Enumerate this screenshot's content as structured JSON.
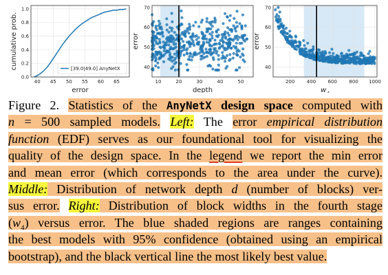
{
  "chart_data": [
    {
      "type": "line",
      "xlabel": "error",
      "ylabel": "cumulative prob.",
      "xlim": [
        38,
        69
      ],
      "ylim": [
        0,
        1.05
      ],
      "x_ticks": [
        "40",
        "45",
        "50",
        "55",
        "60",
        "65"
      ],
      "y_ticks": [
        "0.0",
        "0.2",
        "0.4",
        "0.6",
        "0.8",
        "1.0"
      ],
      "legend_position": "lower-right",
      "series": [
        {
          "name": "[39.0|49.0] AnyNetX",
          "color": "#1f77b4",
          "x": [
            39,
            40,
            41,
            42,
            43,
            44,
            45,
            46,
            47,
            48,
            49,
            50,
            51,
            52,
            53,
            54,
            55,
            56,
            57,
            58,
            59,
            60,
            61,
            62,
            63,
            64,
            65,
            66,
            67,
            68
          ],
          "y": [
            0,
            0.02,
            0.05,
            0.09,
            0.14,
            0.2,
            0.27,
            0.34,
            0.41,
            0.48,
            0.54,
            0.6,
            0.65,
            0.7,
            0.74,
            0.78,
            0.81,
            0.84,
            0.87,
            0.89,
            0.91,
            0.93,
            0.95,
            0.96,
            0.97,
            0.98,
            0.98,
            0.99,
            0.99,
            1.0
          ]
        }
      ]
    },
    {
      "type": "scatter",
      "xlabel": "depth",
      "ylabel": "error",
      "xlim": [
        7,
        56
      ],
      "ylim": [
        35,
        71
      ],
      "x_ticks": [
        "10",
        "20",
        "30",
        "40",
        "50"
      ],
      "y_ticks": [
        "40",
        "50",
        "60",
        "70"
      ],
      "shaded_range": [
        11,
        21
      ],
      "vertical_line": 20,
      "color": "#1f77b4"
    },
    {
      "type": "scatter",
      "xlabel": "w4",
      "ylabel": "error",
      "xlim": [
        40,
        1020
      ],
      "ylim": [
        35,
        71
      ],
      "x_ticks": [
        "200",
        "400",
        "600",
        "800",
        "1000"
      ],
      "y_ticks": [
        "40",
        "50",
        "60",
        "70"
      ],
      "shaded_range": [
        330,
        900
      ],
      "vertical_line": 450,
      "color": "#1f77b4"
    }
  ],
  "caption": {
    "label": "Figure 2.",
    "text_1a": "Statistics of the ",
    "title_mono": "AnyNetX",
    "text_1b": " design space",
    "text_1c": " computed with",
    "math_n": "n",
    "math_eq": " = 500",
    "text_2a": " sampled models.",
    "left_label": "Left:",
    "text_2b": " The ",
    "text_2c": "error ",
    "text_2d": "empirical distribution",
    "text_3a": "function",
    "text_3b": " (EDF) serves as our foundational tool for visualizing the",
    "text_4a": "quality of the design space.",
    "text_4b": " In the ",
    "text_4c": "legend",
    "text_4d": " we report the min error",
    "text_5a": "and mean error (which corresponds to the area under the curve).",
    "middle_label": "Middle:",
    "text_6a": " Distribution of network depth ",
    "math_d": "d",
    "text_6b": " (number of blocks) ver-",
    "text_7a": "sus error.",
    "right_label": "Right:",
    "text_7b": " Distribution of block widths in the fourth stage",
    "text_8a": "(",
    "math_w": "w",
    "math_w_sub": "4",
    "text_8b": ") versus error.",
    "text_8c": " The blue shaded regions are ranges containing",
    "text_9a": "the best models with 95% confidence (obtained using an empirical",
    "text_10a": "bootstrap), and the black vertical line the most likely best value."
  }
}
